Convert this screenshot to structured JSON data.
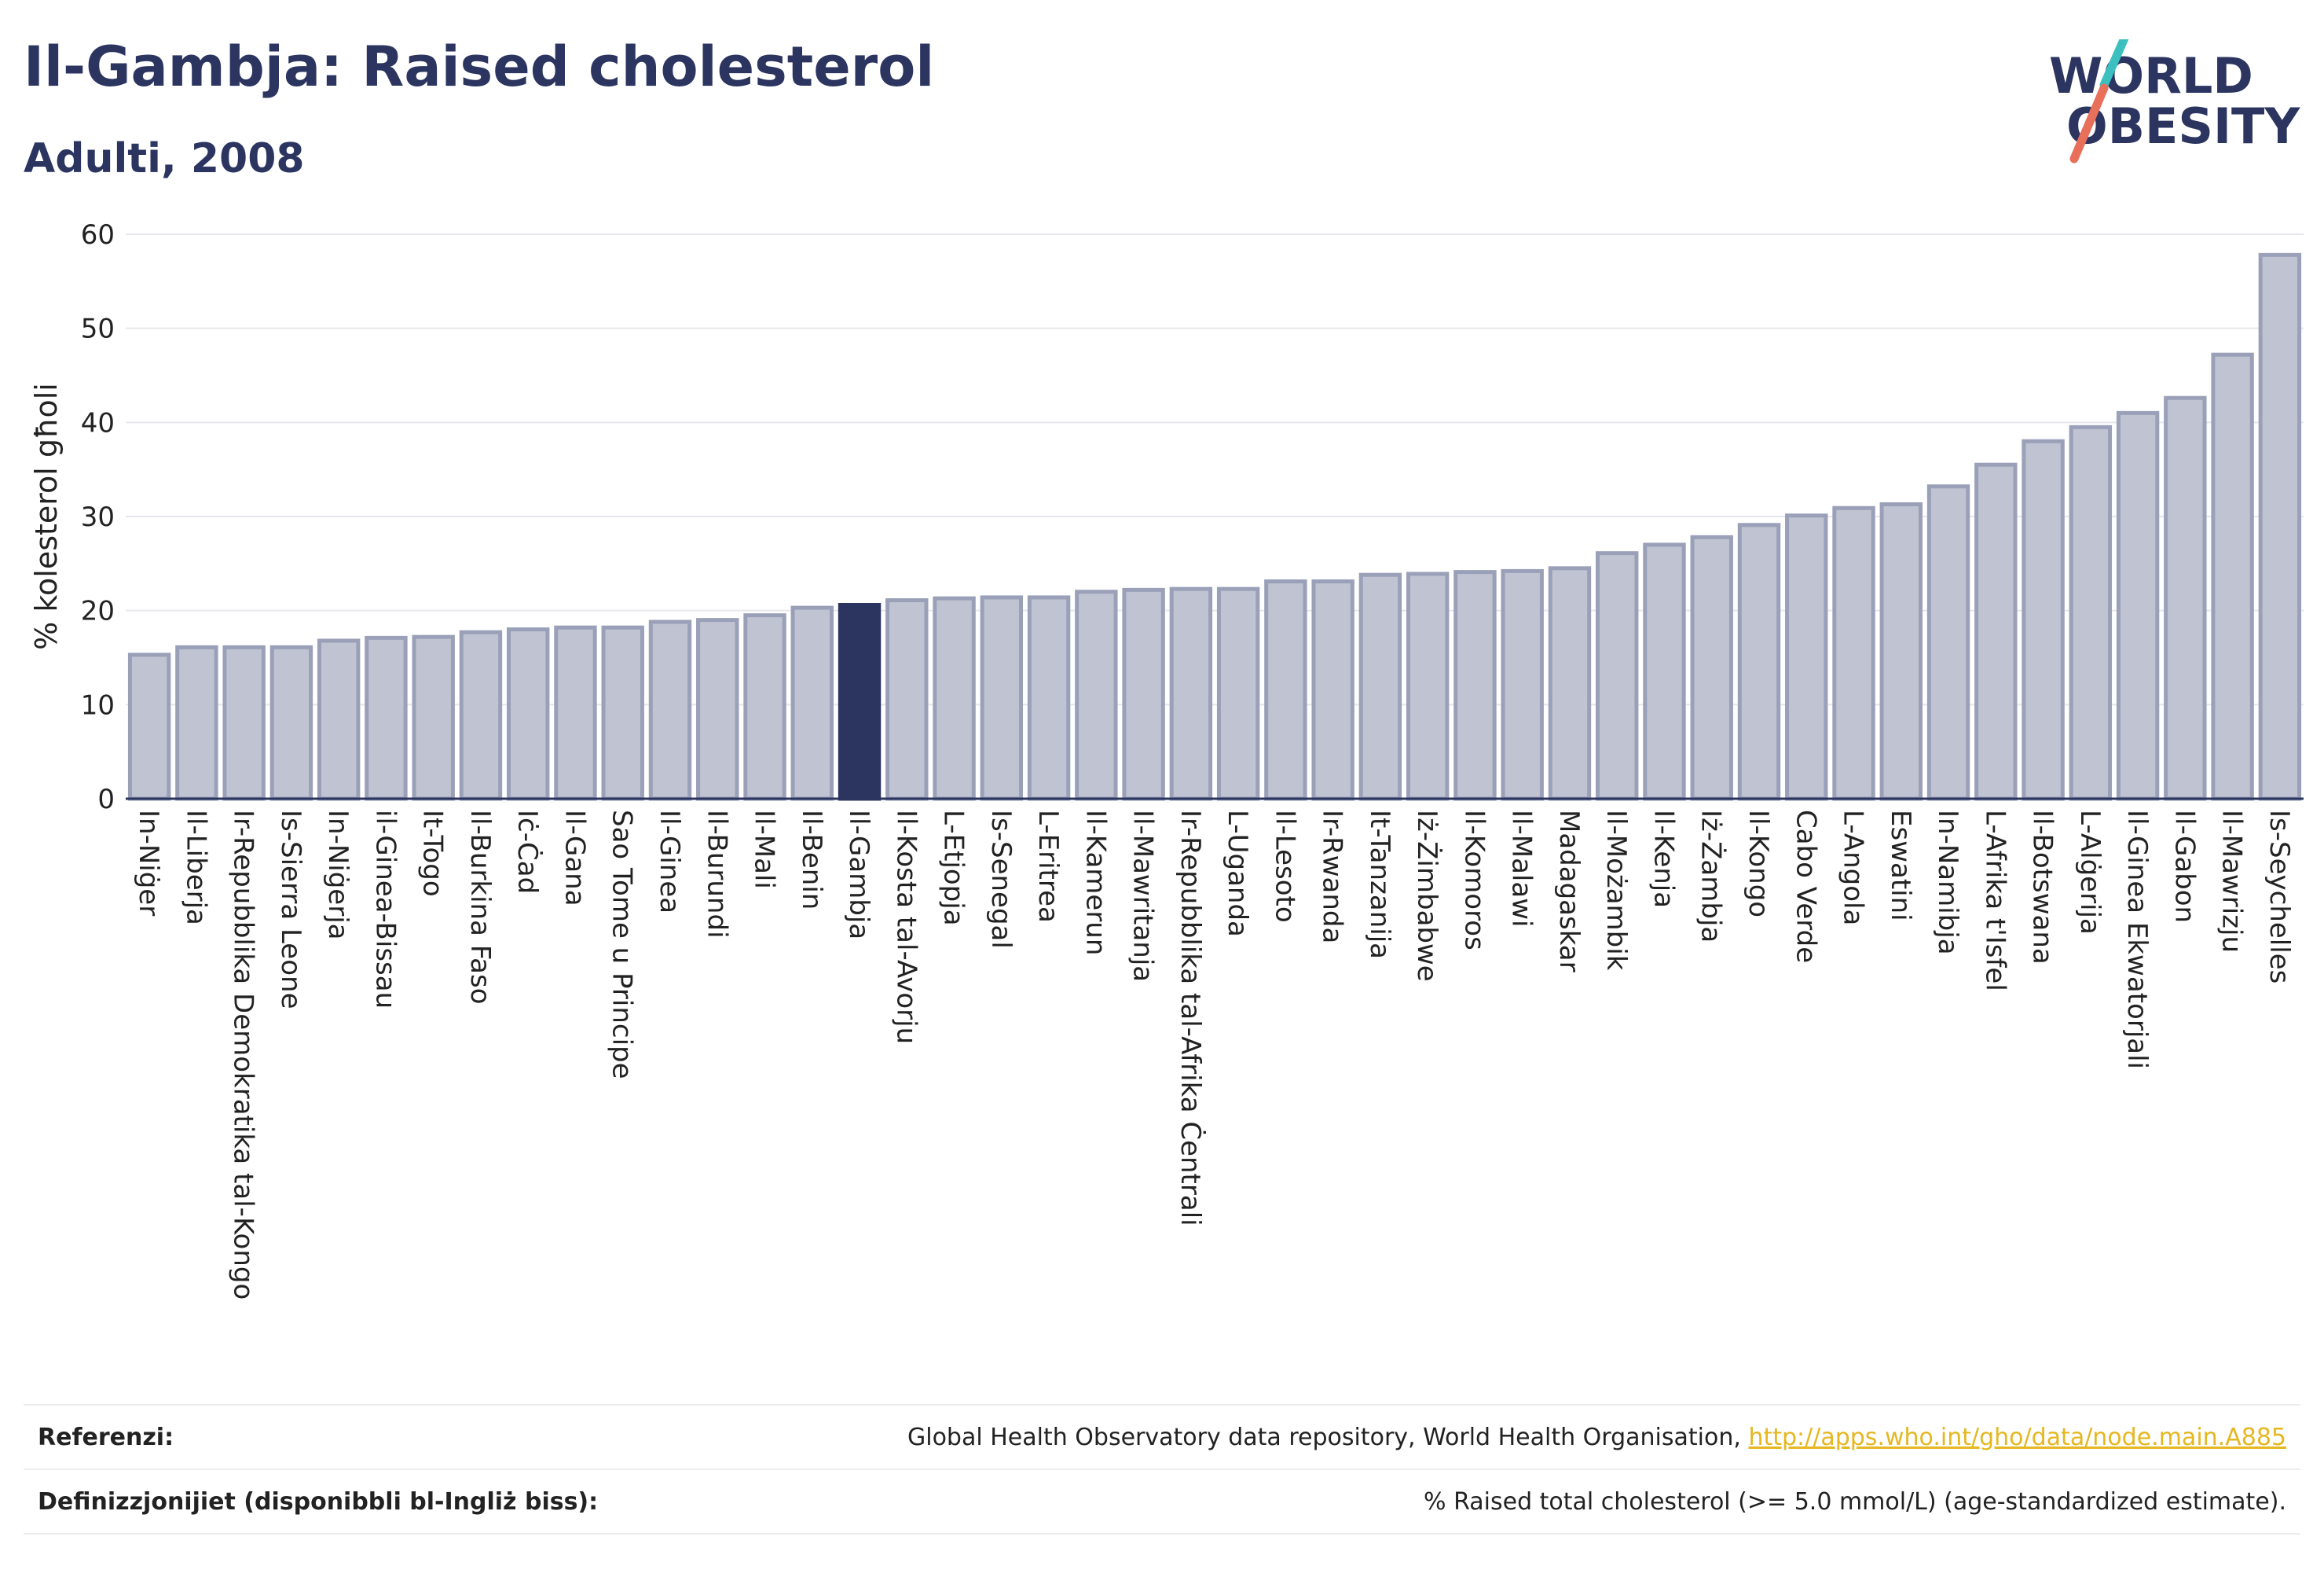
{
  "header": {
    "title": "Il-Gambja: Raised cholesterol",
    "subtitle": "Adulti, 2008"
  },
  "logo": {
    "line1": "WORLD",
    "line2": "OBESITY",
    "colors": {
      "text": "#2b3560",
      "slash_top": "#3bbfbf",
      "slash_bottom": "#e8705a"
    }
  },
  "chart_data": {
    "type": "bar",
    "ylabel": "% kolesterol għoli",
    "xlabel": "",
    "ylim": [
      0,
      60
    ],
    "yticks": [
      0,
      10,
      20,
      30,
      40,
      50,
      60
    ],
    "grid": true,
    "highlight": "Il-Gambja",
    "colors": {
      "bar": "#bfc3d2",
      "bar_edge": "#9aa0b8",
      "highlight": "#2b3560"
    },
    "categories": [
      "In-Niġer",
      "Il-Liberja",
      "Ir-Repubblika Demokratika tal-Kongo",
      "Is-Sierra Leone",
      "In-Niġerja",
      "il-Ginea-Bissau",
      "It-Togo",
      "Il-Burkina Faso",
      "Iċ-Ċad",
      "Il-Gana",
      "Sao Tome u Principe",
      "Il-Ginea",
      "Il-Burundi",
      "Il-Mali",
      "Il-Benin",
      "Il-Gambja",
      "Il-Kosta tal-Avorju",
      "L-Etjopja",
      "Is-Senegal",
      "L-Eritrea",
      "Il-Kamerun",
      "Il-Mawritanja",
      "Ir-Repubblika tal-Afrika Ċentrali",
      "L-Uganda",
      "Il-Lesoto",
      "Ir-Rwanda",
      "It-Tanzanija",
      "Iż-Żimbabwe",
      "Il-Komoros",
      "Il-Malawi",
      "Madagaskar",
      "Il-Możambik",
      "Il-Kenja",
      "Iż-Żambja",
      "Il-Kongo",
      "Cabo Verde",
      "L-Angola",
      "Eswatini",
      "In-Namibja",
      "L-Afrika t'Isfel",
      "Il-Botswana",
      "L-Alġerija",
      "Il-Ginea Ekwatorjali",
      "Il-Gabon",
      "Il-Mawrizju",
      "Is-Seychelles"
    ],
    "values": [
      15.3,
      16.1,
      16.1,
      16.1,
      16.8,
      17.1,
      17.2,
      17.7,
      18.0,
      18.2,
      18.2,
      18.8,
      19.0,
      19.5,
      20.3,
      20.6,
      21.1,
      21.3,
      21.4,
      21.4,
      22.0,
      22.2,
      22.3,
      22.3,
      23.1,
      23.1,
      23.8,
      23.9,
      24.1,
      24.2,
      24.5,
      26.1,
      27.0,
      27.8,
      29.1,
      30.1,
      30.9,
      31.3,
      33.2,
      35.5,
      38.0,
      39.5,
      41.0,
      42.6,
      47.2,
      57.8
    ]
  },
  "footer": {
    "references_label": "Referenzi:",
    "references_text": "Global Health Observatory data repository, World Health Organisation,",
    "references_link": "http://apps.who.int/gho/data/node.main.A885",
    "definitions_label": "Definizzjonijiet (disponibbli bl-Ingliż biss):",
    "definitions_text": "% Raised total cholesterol (>= 5.0 mmol/L) (age-standardized estimate)."
  }
}
